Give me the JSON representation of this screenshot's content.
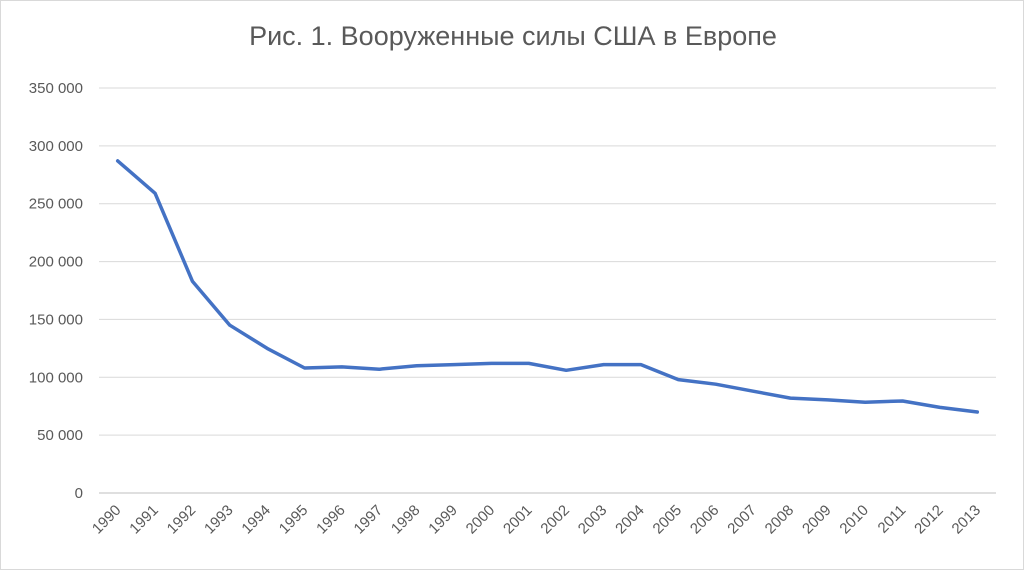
{
  "chart_data": {
    "type": "line",
    "title": "Рис. 1. Вооруженные силы США в Европе",
    "xlabel": "",
    "ylabel": "",
    "categories": [
      "1990",
      "1991",
      "1992",
      "1993",
      "1994",
      "1995",
      "1996",
      "1997",
      "1998",
      "1999",
      "2000",
      "2001",
      "2002",
      "2003",
      "2004",
      "2005",
      "2006",
      "2007",
      "2008",
      "2009",
      "2010",
      "2011",
      "2012",
      "2013"
    ],
    "series": [
      {
        "values": [
          287000,
          259000,
          183000,
          145000,
          125000,
          108000,
          109000,
          107000,
          110000,
          111000,
          112000,
          112000,
          106000,
          111000,
          111000,
          98000,
          94000,
          88000,
          82000,
          80500,
          78500,
          79500,
          74000,
          70000
        ],
        "color": "#4472c4"
      }
    ],
    "ylim": [
      0,
      350000
    ],
    "yticks": [
      0,
      50000,
      100000,
      150000,
      200000,
      250000,
      300000,
      350000
    ],
    "ytick_labels": [
      "0",
      "50 000",
      "100 000",
      "150 000",
      "200 000",
      "250 000",
      "300 000",
      "350 000"
    ],
    "grid": true,
    "legend": "none"
  }
}
